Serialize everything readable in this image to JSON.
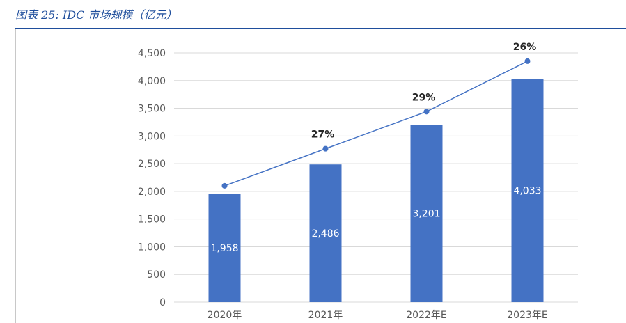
{
  "caption": "图表 25:  IDC 市场规模（亿元）",
  "colors": {
    "bar": "#4472c4",
    "line": "#4472c4",
    "grid": "#d9d9d9",
    "caption": "#1f4e9c"
  },
  "chart_data": {
    "type": "bar",
    "categories": [
      "2020年",
      "2021年",
      "2022年E",
      "2023年E"
    ],
    "series": [
      {
        "type": "bar",
        "values": [
          1958,
          2486,
          3201,
          4033
        ],
        "labels": [
          "1,958",
          "2,486",
          "3,201",
          "4,033"
        ]
      },
      {
        "type": "line",
        "values": [
          2100,
          2770,
          3440,
          4350
        ],
        "labels": [
          "",
          "27%",
          "29%",
          "26%"
        ]
      }
    ],
    "ylim": [
      0,
      4500
    ],
    "yticks": [
      0,
      500,
      1000,
      1500,
      2000,
      2500,
      3000,
      3500,
      4000,
      4500
    ],
    "ytick_labels": [
      "0",
      "500",
      "1,000",
      "1,500",
      "2,000",
      "2,500",
      "3,000",
      "3,500",
      "4,000",
      "4,500"
    ],
    "grid": true,
    "legend": "none"
  }
}
